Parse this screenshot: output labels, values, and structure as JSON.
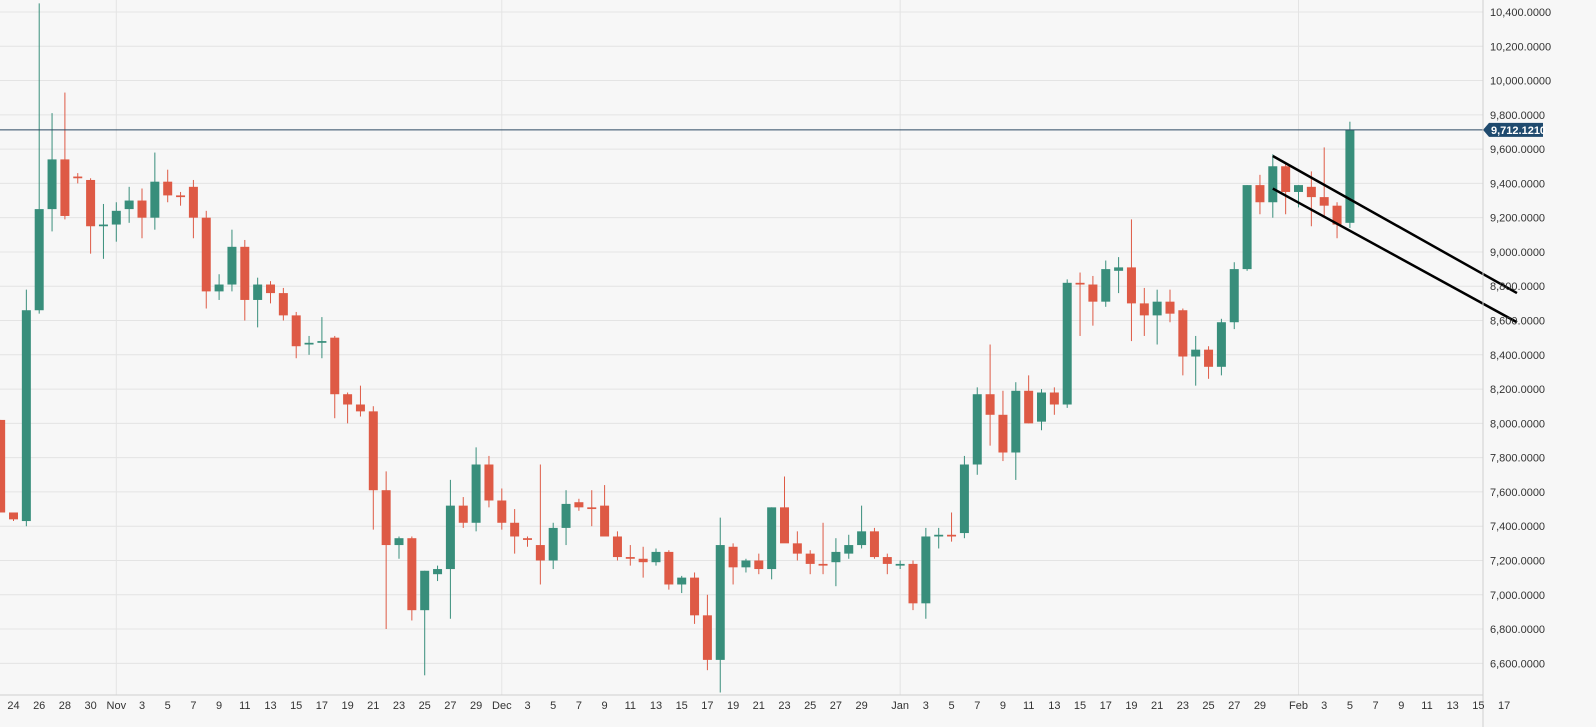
{
  "chart_data": {
    "type": "candlestick",
    "title": "",
    "xlabel": "",
    "ylabel": "",
    "ylim": [
      6400,
      10450
    ],
    "y_ticks": [
      "10,400.0000",
      "10,200.0000",
      "10,000.0000",
      "9,800.0000",
      "9,600.0000",
      "9,400.0000",
      "9,200.0000",
      "9,000.0000",
      "8,800.0000",
      "8,600.0000",
      "8,400.0000",
      "8,200.0000",
      "8,000.0000",
      "7,800.0000",
      "7,600.0000",
      "7,400.0000",
      "7,200.0000",
      "7,000.0000",
      "6,800.0000",
      "6,600.0000"
    ],
    "x_ticks": [
      {
        "day": 0,
        "label": "24"
      },
      {
        "day": 2,
        "label": "26"
      },
      {
        "day": 4,
        "label": "28"
      },
      {
        "day": 6,
        "label": "30"
      },
      {
        "day": 8,
        "label": "Nov"
      },
      {
        "day": 10,
        "label": "3"
      },
      {
        "day": 12,
        "label": "5"
      },
      {
        "day": 14,
        "label": "7"
      },
      {
        "day": 16,
        "label": "9"
      },
      {
        "day": 18,
        "label": "11"
      },
      {
        "day": 20,
        "label": "13"
      },
      {
        "day": 22,
        "label": "15"
      },
      {
        "day": 24,
        "label": "17"
      },
      {
        "day": 26,
        "label": "19"
      },
      {
        "day": 28,
        "label": "21"
      },
      {
        "day": 30,
        "label": "23"
      },
      {
        "day": 32,
        "label": "25"
      },
      {
        "day": 34,
        "label": "27"
      },
      {
        "day": 36,
        "label": "29"
      },
      {
        "day": 38,
        "label": "Dec"
      },
      {
        "day": 40,
        "label": "3"
      },
      {
        "day": 42,
        "label": "5"
      },
      {
        "day": 44,
        "label": "7"
      },
      {
        "day": 46,
        "label": "9"
      },
      {
        "day": 48,
        "label": "11"
      },
      {
        "day": 50,
        "label": "13"
      },
      {
        "day": 52,
        "label": "15"
      },
      {
        "day": 54,
        "label": "17"
      },
      {
        "day": 56,
        "label": "19"
      },
      {
        "day": 58,
        "label": "21"
      },
      {
        "day": 60,
        "label": "23"
      },
      {
        "day": 62,
        "label": "25"
      },
      {
        "day": 64,
        "label": "27"
      },
      {
        "day": 66,
        "label": "29"
      },
      {
        "day": 69,
        "label": "Jan"
      },
      {
        "day": 71,
        "label": "3"
      },
      {
        "day": 73,
        "label": "5"
      },
      {
        "day": 75,
        "label": "7"
      },
      {
        "day": 77,
        "label": "9"
      },
      {
        "day": 79,
        "label": "11"
      },
      {
        "day": 81,
        "label": "13"
      },
      {
        "day": 83,
        "label": "15"
      },
      {
        "day": 85,
        "label": "17"
      },
      {
        "day": 87,
        "label": "19"
      },
      {
        "day": 89,
        "label": "21"
      },
      {
        "day": 91,
        "label": "23"
      },
      {
        "day": 93,
        "label": "25"
      },
      {
        "day": 95,
        "label": "27"
      },
      {
        "day": 97,
        "label": "29"
      },
      {
        "day": 100,
        "label": "Feb"
      },
      {
        "day": 102,
        "label": "3"
      },
      {
        "day": 104,
        "label": "5"
      },
      {
        "day": 106,
        "label": "7"
      },
      {
        "day": 108,
        "label": "9"
      },
      {
        "day": 110,
        "label": "11"
      },
      {
        "day": 112,
        "label": "13"
      },
      {
        "day": 114,
        "label": "15"
      },
      {
        "day": 116,
        "label": "17"
      }
    ],
    "candles": [
      [
        -1,
        8020,
        8020,
        7480,
        7480
      ],
      [
        0,
        7480,
        7480,
        7430,
        7440
      ],
      [
        1,
        7430,
        8780,
        7400,
        8660
      ],
      [
        2,
        8660,
        10450,
        8640,
        9250
      ],
      [
        3,
        9250,
        9810,
        9120,
        9540
      ],
      [
        4,
        9540,
        9930,
        9190,
        9210
      ],
      [
        5,
        9440,
        9460,
        9400,
        9430
      ],
      [
        6,
        9420,
        9430,
        8990,
        9150
      ],
      [
        7,
        9150,
        9280,
        8960,
        9160
      ],
      [
        8,
        9160,
        9290,
        9060,
        9240
      ],
      [
        9,
        9250,
        9380,
        9170,
        9300
      ],
      [
        10,
        9300,
        9370,
        9080,
        9200
      ],
      [
        11,
        9200,
        9580,
        9130,
        9410
      ],
      [
        12,
        9410,
        9480,
        9290,
        9330
      ],
      [
        13,
        9330,
        9350,
        9270,
        9320
      ],
      [
        14,
        9380,
        9420,
        9080,
        9200
      ],
      [
        15,
        9200,
        9240,
        8670,
        8770
      ],
      [
        16,
        8770,
        8870,
        8720,
        8810
      ],
      [
        17,
        8810,
        9130,
        8770,
        9030
      ],
      [
        18,
        9030,
        9070,
        8600,
        8720
      ],
      [
        19,
        8720,
        8850,
        8560,
        8810
      ],
      [
        20,
        8810,
        8830,
        8700,
        8760
      ],
      [
        21,
        8760,
        8790,
        8600,
        8630
      ],
      [
        22,
        8630,
        8650,
        8380,
        8450
      ],
      [
        23,
        8460,
        8510,
        8400,
        8470
      ],
      [
        24,
        8470,
        8620,
        8380,
        8480
      ],
      [
        25,
        8500,
        8510,
        8030,
        8170
      ],
      [
        26,
        8170,
        8180,
        8000,
        8110
      ],
      [
        27,
        8110,
        8220,
        8040,
        8070
      ],
      [
        28,
        8070,
        8100,
        7380,
        7610
      ],
      [
        29,
        7610,
        7720,
        6800,
        7290
      ],
      [
        30,
        7290,
        7340,
        7210,
        7330
      ],
      [
        31,
        7330,
        7340,
        6850,
        6910
      ],
      [
        32,
        6910,
        7140,
        6530,
        7140
      ],
      [
        33,
        7120,
        7170,
        7080,
        7150
      ],
      [
        34,
        7150,
        7670,
        6860,
        7520
      ],
      [
        35,
        7520,
        7570,
        7390,
        7420
      ],
      [
        36,
        7420,
        7860,
        7370,
        7760
      ],
      [
        37,
        7760,
        7810,
        7510,
        7550
      ],
      [
        38,
        7550,
        7620,
        7380,
        7420
      ],
      [
        39,
        7420,
        7500,
        7240,
        7340
      ],
      [
        40,
        7330,
        7340,
        7280,
        7320
      ],
      [
        41,
        7290,
        7760,
        7060,
        7200
      ],
      [
        42,
        7200,
        7420,
        7150,
        7390
      ],
      [
        43,
        7390,
        7610,
        7290,
        7530
      ],
      [
        44,
        7540,
        7560,
        7490,
        7510
      ],
      [
        45,
        7510,
        7610,
        7400,
        7500
      ],
      [
        46,
        7520,
        7640,
        7370,
        7340
      ],
      [
        47,
        7340,
        7370,
        7200,
        7220
      ],
      [
        48,
        7220,
        7290,
        7170,
        7210
      ],
      [
        49,
        7210,
        7280,
        7100,
        7190
      ],
      [
        50,
        7190,
        7270,
        7170,
        7250
      ],
      [
        51,
        7250,
        7260,
        7030,
        7060
      ],
      [
        52,
        7060,
        7110,
        7010,
        7100
      ],
      [
        53,
        7100,
        7130,
        6830,
        6880
      ],
      [
        54,
        6880,
        7000,
        6560,
        6620
      ],
      [
        55,
        6620,
        7450,
        6430,
        7290
      ],
      [
        56,
        7280,
        7300,
        7060,
        7160
      ],
      [
        57,
        7160,
        7210,
        7130,
        7200
      ],
      [
        58,
        7200,
        7240,
        7120,
        7150
      ],
      [
        59,
        7150,
        7510,
        7090,
        7510
      ],
      [
        60,
        7510,
        7690,
        7340,
        7300
      ],
      [
        61,
        7300,
        7370,
        7200,
        7240
      ],
      [
        62,
        7240,
        7260,
        7120,
        7180
      ],
      [
        63,
        7180,
        7420,
        7120,
        7170
      ],
      [
        64,
        7190,
        7330,
        7050,
        7250
      ],
      [
        65,
        7240,
        7350,
        7210,
        7290
      ],
      [
        66,
        7290,
        7520,
        7270,
        7370
      ],
      [
        67,
        7370,
        7390,
        7210,
        7220
      ],
      [
        68,
        7220,
        7240,
        7120,
        7180
      ],
      [
        69,
        7170,
        7200,
        7150,
        7180
      ],
      [
        70,
        7180,
        7200,
        6910,
        6950
      ],
      [
        71,
        6950,
        7390,
        6860,
        7340
      ],
      [
        72,
        7340,
        7390,
        7270,
        7350
      ],
      [
        73,
        7350,
        7480,
        7310,
        7340
      ],
      [
        74,
        7360,
        7810,
        7330,
        7760
      ],
      [
        75,
        7760,
        8210,
        7700,
        8170
      ],
      [
        76,
        8170,
        8460,
        7870,
        8050
      ],
      [
        77,
        8050,
        8190,
        7780,
        7830
      ],
      [
        78,
        7830,
        8240,
        7670,
        8190
      ],
      [
        79,
        8190,
        8280,
        8000,
        8000
      ],
      [
        80,
        8010,
        8200,
        7960,
        8180
      ],
      [
        81,
        8180,
        8210,
        8050,
        8110
      ],
      [
        82,
        8110,
        8840,
        8090,
        8820
      ],
      [
        83,
        8820,
        8880,
        8510,
        8810
      ],
      [
        84,
        8810,
        8860,
        8570,
        8710
      ],
      [
        85,
        8710,
        8950,
        8680,
        8900
      ],
      [
        86,
        8890,
        8970,
        8760,
        8910
      ],
      [
        87,
        8910,
        9190,
        8480,
        8700
      ],
      [
        88,
        8700,
        8790,
        8510,
        8630
      ],
      [
        89,
        8630,
        8780,
        8460,
        8710
      ],
      [
        90,
        8710,
        8780,
        8590,
        8640
      ],
      [
        91,
        8660,
        8670,
        8280,
        8390
      ],
      [
        92,
        8390,
        8510,
        8220,
        8430
      ],
      [
        93,
        8430,
        8450,
        8260,
        8330
      ],
      [
        94,
        8330,
        8610,
        8280,
        8590
      ],
      [
        95,
        8590,
        8940,
        8550,
        8900
      ],
      [
        96,
        8900,
        9390,
        8890,
        9390
      ],
      [
        97,
        9390,
        9450,
        9220,
        9290
      ],
      [
        98,
        9290,
        9570,
        9200,
        9500
      ],
      [
        99,
        9500,
        9520,
        9220,
        9350
      ],
      [
        100,
        9350,
        9390,
        9260,
        9390
      ],
      [
        101,
        9380,
        9470,
        9150,
        9320
      ],
      [
        102,
        9320,
        9610,
        9210,
        9270
      ],
      [
        103,
        9270,
        9290,
        9080,
        9160
      ],
      [
        104,
        9170,
        9760,
        9140,
        9712.121
      ]
    ],
    "current_price": 9712.121,
    "current_price_label": "9,712.1210",
    "trendlines": [
      {
        "x1": 98,
        "y1": 9560,
        "x2": 117,
        "y2": 8760
      },
      {
        "x1": 98,
        "y1": 9370,
        "x2": 117,
        "y2": 8590
      }
    ],
    "colors": {
      "up": "#388e7b",
      "down": "#de5a45",
      "background": "#f7f7f7",
      "grid": "#e4e4e4",
      "price_line": "#2c4a63",
      "price_tag": "#1f4a6e",
      "trendline": "#000000"
    },
    "grid": true
  }
}
